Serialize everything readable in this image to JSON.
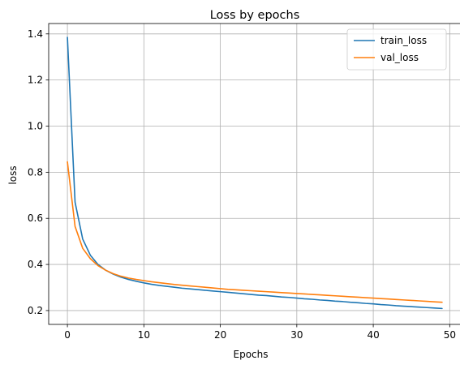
{
  "chart_data": {
    "type": "line",
    "title": "Loss by epochs",
    "xlabel": "Epochs",
    "ylabel": "loss",
    "xlim": [
      -2.45,
      51.45
    ],
    "ylim": [
      0.14,
      1.445
    ],
    "xticks": [
      0,
      10,
      20,
      30,
      40,
      50
    ],
    "yticks": [
      0.2,
      0.4,
      0.6,
      0.8,
      1.0,
      1.2,
      1.4
    ],
    "ytick_labels": [
      "0.2",
      "0.4",
      "0.6",
      "0.8",
      "1.0",
      "1.2",
      "1.4"
    ],
    "grid": true,
    "legend_position": "top-right",
    "x": [
      0,
      1,
      2,
      3,
      4,
      5,
      6,
      7,
      8,
      9,
      10,
      11,
      12,
      13,
      14,
      15,
      16,
      17,
      18,
      19,
      20,
      21,
      22,
      23,
      24,
      25,
      26,
      27,
      28,
      29,
      30,
      31,
      32,
      33,
      34,
      35,
      36,
      37,
      38,
      39,
      40,
      41,
      42,
      43,
      44,
      45,
      46,
      47,
      48,
      49
    ],
    "series": [
      {
        "name": "train_loss",
        "color": "#1f77b4",
        "values": [
          1.385,
          0.67,
          0.51,
          0.44,
          0.4,
          0.375,
          0.358,
          0.345,
          0.335,
          0.327,
          0.32,
          0.314,
          0.309,
          0.305,
          0.301,
          0.297,
          0.294,
          0.291,
          0.288,
          0.285,
          0.282,
          0.279,
          0.276,
          0.273,
          0.27,
          0.267,
          0.265,
          0.262,
          0.259,
          0.257,
          0.254,
          0.251,
          0.249,
          0.246,
          0.244,
          0.241,
          0.239,
          0.236,
          0.234,
          0.231,
          0.229,
          0.226,
          0.224,
          0.221,
          0.219,
          0.217,
          0.215,
          0.213,
          0.211,
          0.209
        ]
      },
      {
        "name": "val_loss",
        "color": "#ff7f0e",
        "values": [
          0.845,
          0.565,
          0.47,
          0.425,
          0.395,
          0.375,
          0.36,
          0.349,
          0.341,
          0.335,
          0.33,
          0.325,
          0.321,
          0.317,
          0.313,
          0.31,
          0.307,
          0.304,
          0.301,
          0.298,
          0.295,
          0.292,
          0.29,
          0.288,
          0.286,
          0.284,
          0.282,
          0.28,
          0.278,
          0.276,
          0.274,
          0.272,
          0.27,
          0.268,
          0.266,
          0.264,
          0.262,
          0.26,
          0.258,
          0.256,
          0.254,
          0.252,
          0.25,
          0.248,
          0.246,
          0.244,
          0.242,
          0.24,
          0.238,
          0.236
        ]
      }
    ]
  }
}
